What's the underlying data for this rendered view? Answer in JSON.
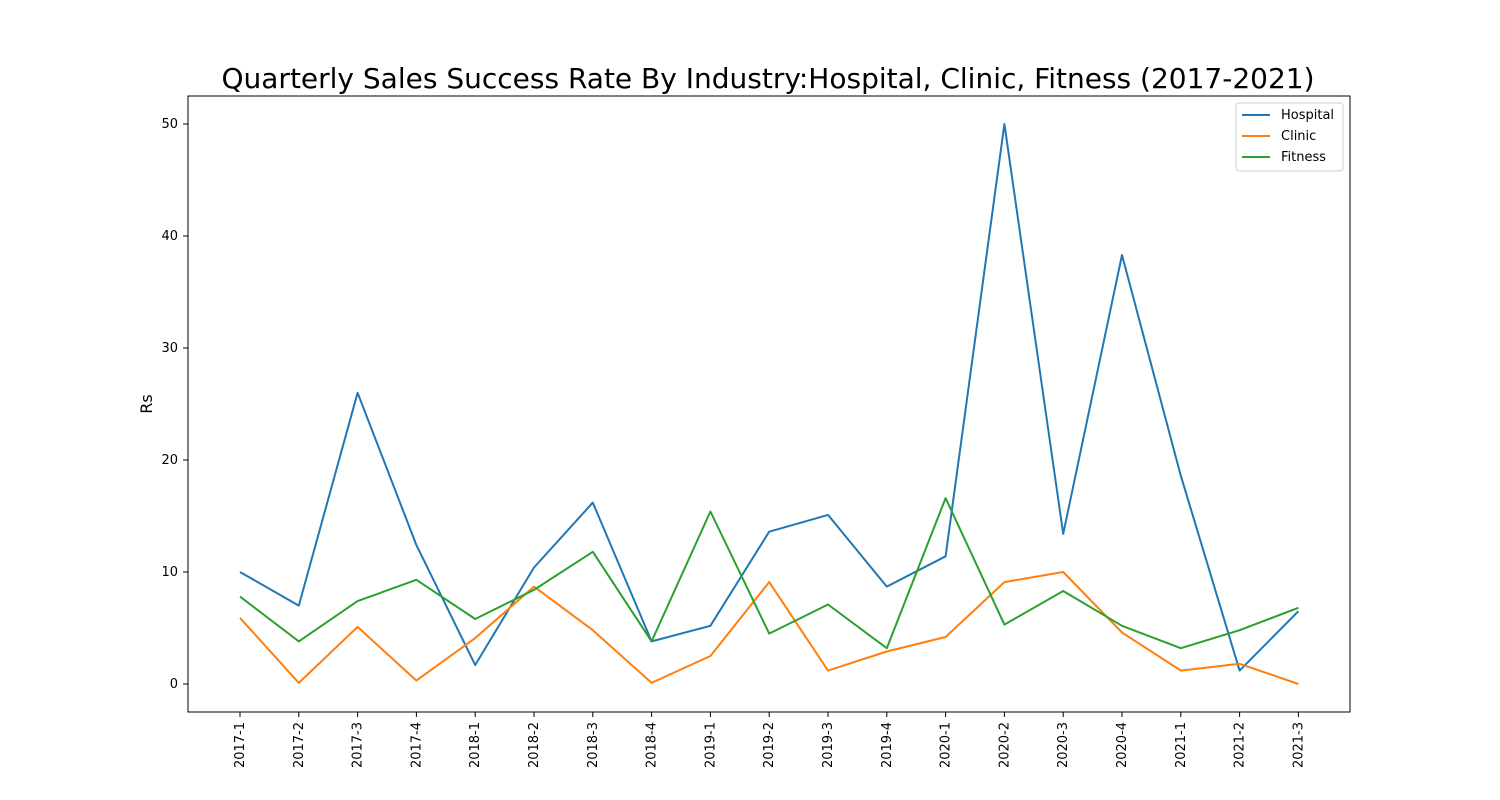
{
  "chart_data": {
    "type": "line",
    "title": "Quarterly Sales Success Rate By Industry:Hospital, Clinic, Fitness (2017-2021)",
    "xlabel": "",
    "ylabel": "Rs",
    "categories": [
      "2017-1",
      "2017-2",
      "2017-3",
      "2017-4",
      "2018-1",
      "2018-2",
      "2018-3",
      "2018-4",
      "2019-1",
      "2019-2",
      "2019-3",
      "2019-4",
      "2020-1",
      "2020-2",
      "2020-3",
      "2020-4",
      "2021-1",
      "2021-2",
      "2021-3"
    ],
    "series": [
      {
        "name": "Hospital",
        "color": "#1f77b4",
        "values": [
          10.0,
          7.0,
          26.0,
          12.4,
          1.7,
          10.4,
          16.2,
          3.8,
          5.2,
          13.6,
          15.1,
          8.7,
          11.4,
          50.0,
          13.4,
          38.3,
          18.6,
          1.2,
          6.5
        ]
      },
      {
        "name": "Clinic",
        "color": "#ff7f0e",
        "values": [
          5.9,
          0.1,
          5.1,
          0.3,
          4.1,
          8.7,
          4.8,
          0.1,
          2.5,
          9.1,
          1.2,
          2.9,
          4.2,
          9.1,
          10.0,
          4.6,
          1.2,
          1.8,
          0.0
        ]
      },
      {
        "name": "Fitness",
        "color": "#2ca02c",
        "values": [
          7.8,
          3.8,
          7.4,
          9.3,
          5.8,
          8.4,
          11.8,
          3.8,
          15.4,
          4.5,
          7.1,
          3.2,
          16.6,
          5.3,
          8.3,
          5.2,
          3.2,
          4.8,
          6.8
        ]
      }
    ],
    "ylim": [
      -2.5,
      52.5
    ],
    "yticks": [
      0,
      10,
      20,
      30,
      40,
      50
    ],
    "grid": false,
    "legend_position": "top-right"
  }
}
